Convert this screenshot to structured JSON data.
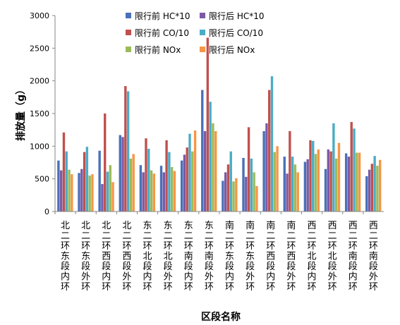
{
  "chart_data": {
    "type": "bar",
    "title": "",
    "xlabel": "区段名称",
    "ylabel": "排放量（g）",
    "ylim": [
      0,
      3000
    ],
    "yticks": [
      0,
      500,
      1000,
      1500,
      2000,
      2500,
      3000
    ],
    "grid": false,
    "legend_position": "top",
    "categories": [
      "北二环东段内环",
      "北二环东段外环",
      "北二环西段内环",
      "北二环西段外环",
      "东二环北段内环",
      "东二环北段外环",
      "东二环南段内环",
      "东二环南段外环",
      "南二环东段内环",
      "南二环东段外环",
      "南二环西段内环",
      "南二环西段外环",
      "西二环北段内环",
      "西二环北段外环",
      "西二环南段内环",
      "西二环南段外环"
    ],
    "series": [
      {
        "name": "限行前 HC*10",
        "color": "#4a70b8",
        "values": [
          780,
          590,
          930,
          1170,
          710,
          700,
          780,
          1860,
          470,
          820,
          1230,
          840,
          760,
          650,
          890,
          540
        ]
      },
      {
        "name": "限行后 HC*10",
        "color": "#7b5aa6",
        "values": [
          630,
          650,
          420,
          1140,
          600,
          600,
          870,
          1230,
          600,
          530,
          1350,
          580,
          800,
          950,
          840,
          640
        ]
      },
      {
        "name": "限行前 CO/10",
        "color": "#c0504d",
        "values": [
          1210,
          910,
          1500,
          1920,
          1120,
          1090,
          980,
          2660,
          720,
          1290,
          1860,
          1230,
          1090,
          920,
          1370,
          730
        ]
      },
      {
        "name": "限行后 CO/10",
        "color": "#4bacc6",
        "values": [
          920,
          990,
          610,
          1840,
          960,
          910,
          1190,
          1680,
          920,
          810,
          2070,
          840,
          1080,
          1350,
          1270,
          850
        ]
      },
      {
        "name": "限行前 NOx",
        "color": "#9bbb59",
        "values": [
          640,
          550,
          710,
          810,
          630,
          680,
          920,
          1350,
          460,
          600,
          910,
          720,
          880,
          810,
          900,
          700
        ]
      },
      {
        "name": "限行后 NOx",
        "color": "#f79646",
        "values": [
          570,
          570,
          450,
          880,
          580,
          620,
          1240,
          1230,
          510,
          390,
          1000,
          600,
          950,
          1050,
          900,
          790
        ]
      }
    ]
  }
}
